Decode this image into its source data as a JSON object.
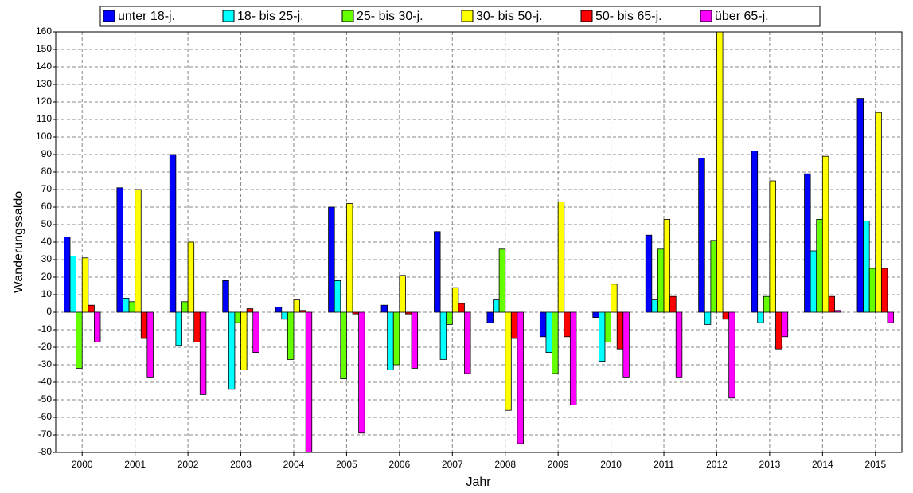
{
  "chart_data": {
    "type": "bar",
    "x_label": "Jahr",
    "y_label": "Wanderungssaldo",
    "categories": [
      "2000",
      "2001",
      "2002",
      "2003",
      "2004",
      "2005",
      "2006",
      "2007",
      "2008",
      "2009",
      "2010",
      "2011",
      "2012",
      "2013",
      "2014",
      "2015"
    ],
    "series": [
      {
        "name": "unter 18-j.",
        "color": "#0000ff",
        "values": [
          43,
          71,
          90,
          18,
          3,
          60,
          4,
          46,
          -6,
          -14,
          -3,
          44,
          88,
          92,
          79,
          122
        ]
      },
      {
        "name": "18- bis 25-j.",
        "color": "#00ffff",
        "values": [
          32,
          8,
          -19,
          -44,
          -4,
          18,
          -33,
          -27,
          7,
          -23,
          -28,
          7,
          -7,
          -6,
          35,
          52
        ]
      },
      {
        "name": "25- bis 30-j.",
        "color": "#66ff00",
        "values": [
          -32,
          6,
          6,
          -6,
          -27,
          -38,
          -30,
          -7,
          36,
          -35,
          -17,
          36,
          41,
          9,
          53,
          25
        ]
      },
      {
        "name": "30- bis 50-j.",
        "color": "#ffff00",
        "values": [
          31,
          70,
          40,
          -33,
          7,
          62,
          21,
          14,
          -56,
          63,
          16,
          53,
          160,
          75,
          89,
          114
        ]
      },
      {
        "name": "50- bis 65-j.",
        "color": "#ff0000",
        "values": [
          4,
          -15,
          -17,
          2,
          1,
          -1,
          -1,
          5,
          -15,
          -14,
          -21,
          9,
          -4,
          -21,
          9,
          25
        ]
      },
      {
        "name": "über 65-j.",
        "color": "#ff00ff",
        "values": [
          -17,
          -37,
          -47,
          -23,
          -80,
          -69,
          -32,
          -35,
          -75,
          -53,
          -37,
          -37,
          -49,
          -14,
          1,
          -6
        ]
      }
    ],
    "ylim": [
      -80,
      160
    ],
    "yticks": [
      -80,
      -70,
      -60,
      -50,
      -40,
      -30,
      -20,
      -10,
      0,
      10,
      20,
      30,
      40,
      50,
      60,
      70,
      80,
      90,
      100,
      110,
      120,
      130,
      140,
      150,
      160
    ],
    "grid": true
  }
}
